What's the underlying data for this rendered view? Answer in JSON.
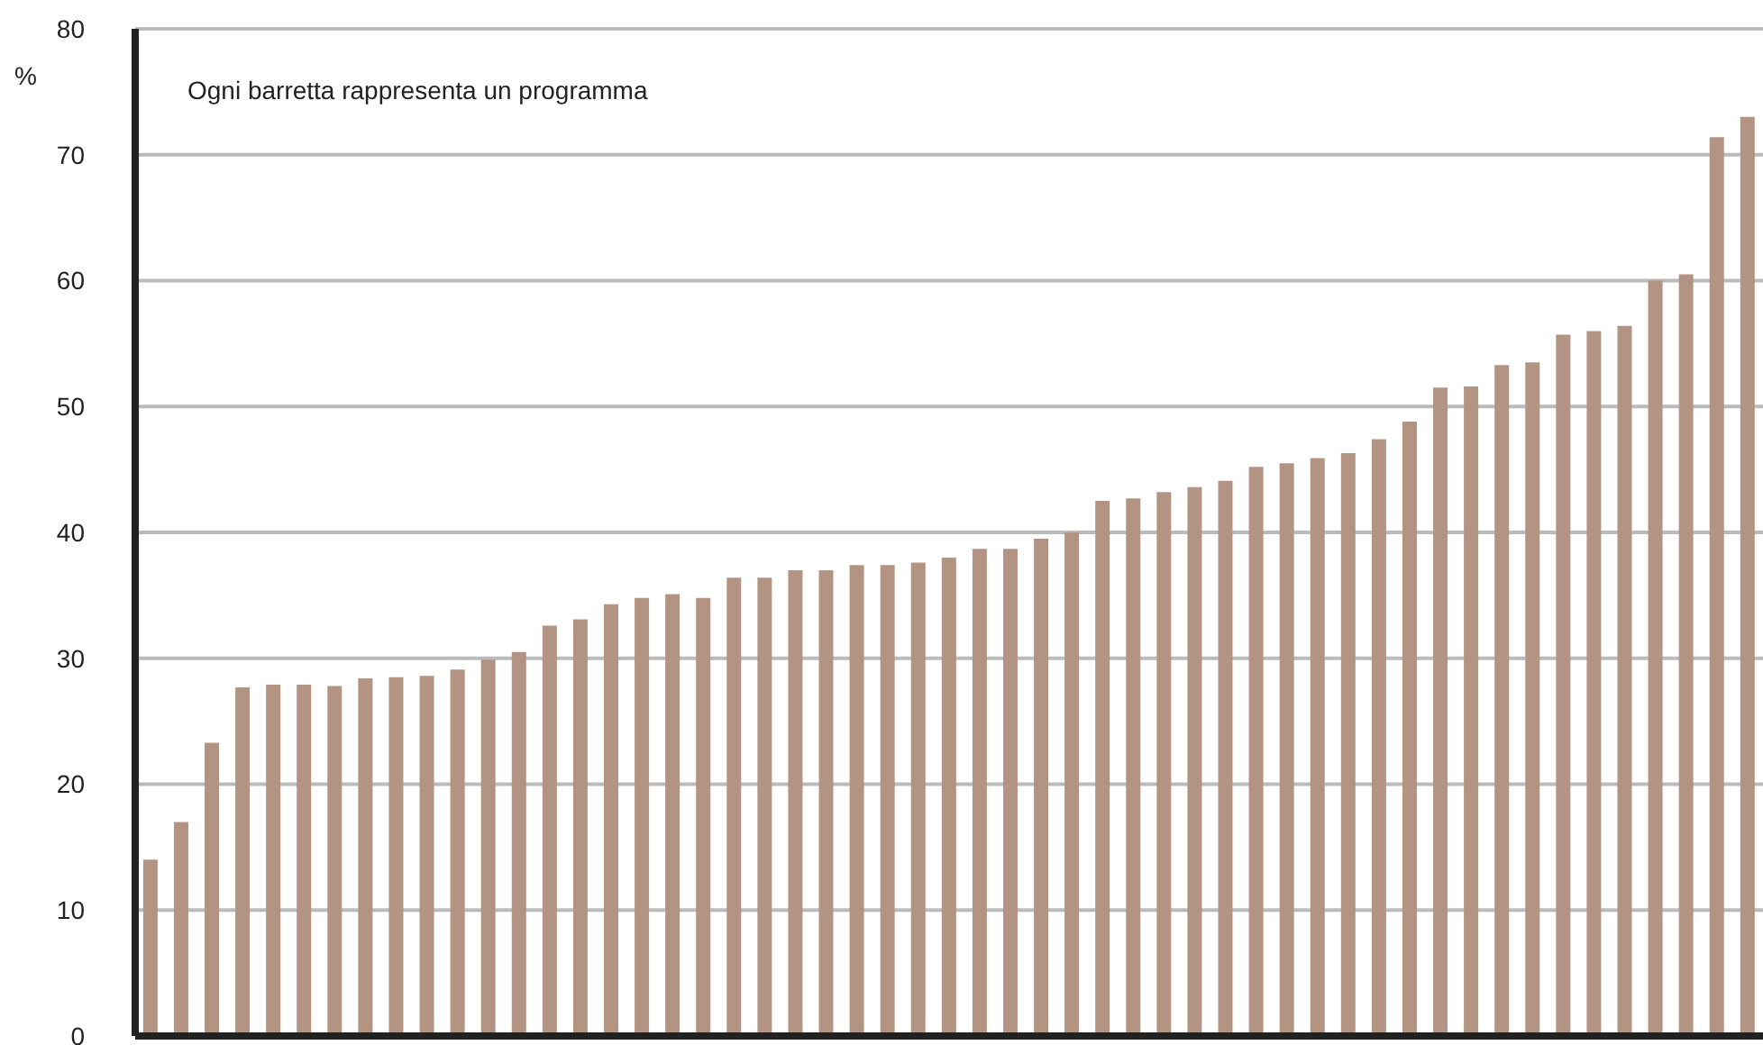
{
  "chart_data": {
    "type": "bar",
    "ylabel": "%",
    "annotations": [
      "Ogni barretta rappresenta un programma"
    ],
    "categories": [
      null,
      null,
      null,
      null,
      null,
      null,
      null,
      null,
      null,
      null,
      null,
      null,
      null,
      null,
      null,
      null,
      null,
      null,
      null,
      null,
      null,
      null,
      null,
      null,
      null,
      null,
      null,
      null,
      null,
      null,
      null,
      null,
      null,
      null,
      null,
      null,
      null,
      null,
      null,
      null,
      null,
      null,
      null,
      null,
      null,
      null,
      null,
      null,
      null,
      null,
      null,
      null,
      null
    ],
    "values": [
      14,
      17,
      23.3,
      27.7,
      27.9,
      27.9,
      27.8,
      28.4,
      28.5,
      28.6,
      29.1,
      29.9,
      30.5,
      32.6,
      33.1,
      34.3,
      34.8,
      35.1,
      34.8,
      36.4,
      36.4,
      37,
      37,
      37.4,
      37.4,
      37.6,
      38,
      38.7,
      38.7,
      39.5,
      40,
      42.5,
      42.7,
      43.2,
      43.6,
      44.1,
      45.2,
      45.5,
      45.9,
      46.3,
      47.4,
      48.8,
      51.5,
      51.6,
      53.3,
      53.5,
      55.7,
      56,
      56.4,
      60,
      60.5,
      71.4,
      73
    ],
    "color": "#b39382",
    "ylim": [
      0,
      80
    ],
    "yticks": [
      0,
      10,
      20,
      30,
      40,
      50,
      60,
      70,
      80
    ],
    "grid": "y",
    "tick_labels": "y"
  }
}
